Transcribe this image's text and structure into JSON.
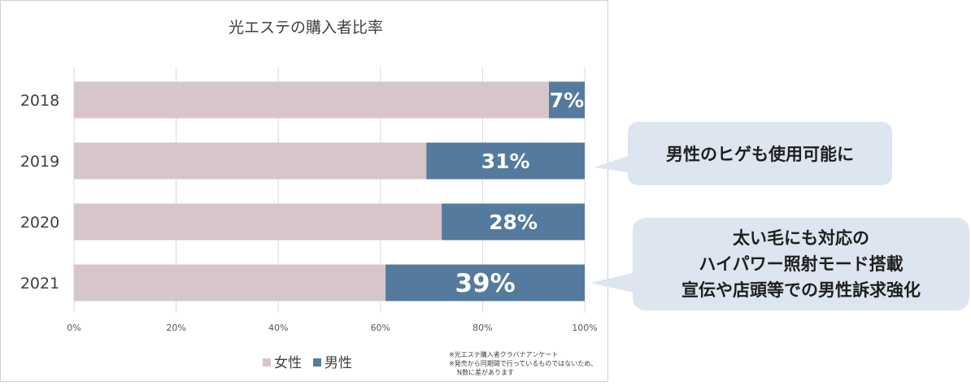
{
  "chart_data": {
    "type": "bar",
    "orientation": "horizontal",
    "stacked": true,
    "title": "光エステの購入者比率",
    "categories": [
      "2018",
      "2019",
      "2020",
      "2021"
    ],
    "series": [
      {
        "name": "女性",
        "values": [
          93,
          69,
          72,
          61
        ],
        "color": "#d6c6c9"
      },
      {
        "name": "男性",
        "values": [
          7,
          31,
          28,
          39
        ],
        "color": "#547a9d"
      }
    ],
    "data_labels": [
      "7%",
      "31%",
      "28%",
      "39%"
    ],
    "xlim": [
      0,
      100
    ],
    "x_ticks": [
      "0%",
      "20%",
      "40%",
      "60%",
      "80%",
      "100%"
    ],
    "grid": true,
    "legend_position": "bottom"
  },
  "footnote": [
    "※光エステ購入者クラバナアンケート",
    "※発売から同期間で行っているものではないため、",
    "N数に差があります"
  ],
  "callouts": {
    "y2019": "男性のヒゲも使用可能に",
    "y2021": [
      "太い毛にも対応の",
      "ハイパワー照射モード搭載",
      "宣伝や店頭等での男性訴求強化"
    ]
  },
  "colors": {
    "callout_bg": "#dce5f0",
    "grid": "#d9d9d9"
  }
}
